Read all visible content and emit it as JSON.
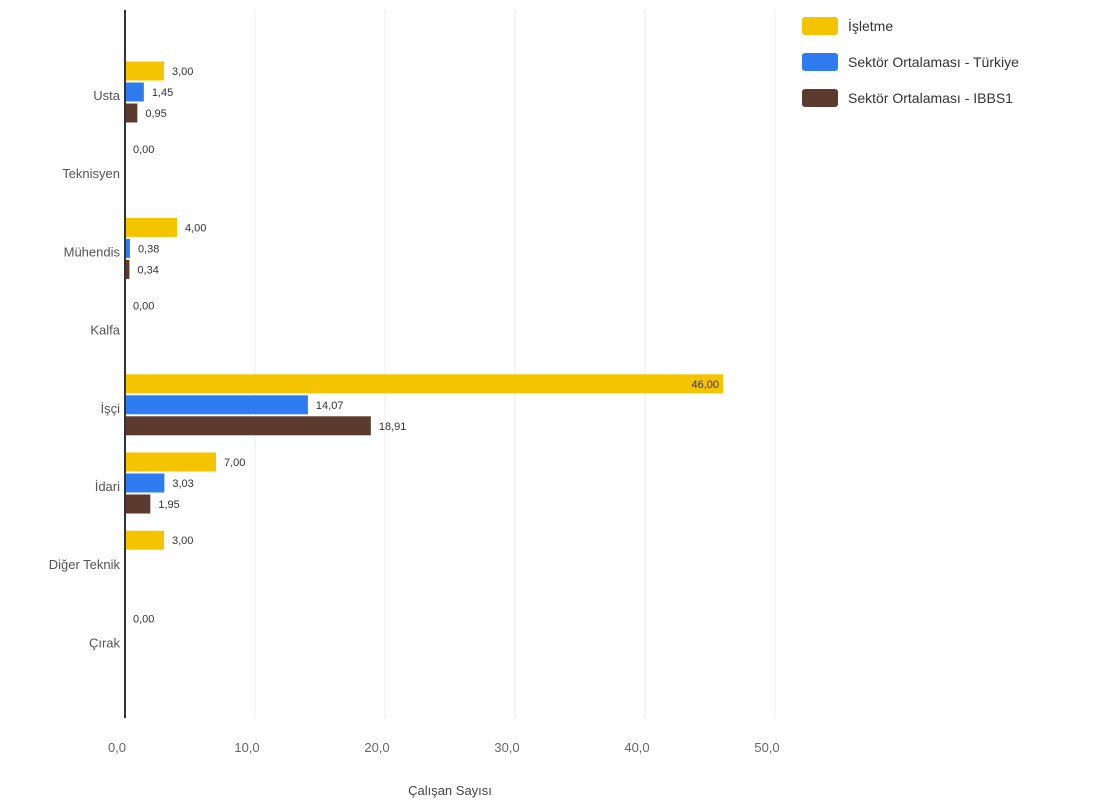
{
  "chart_data": {
    "type": "bar",
    "orientation": "horizontal",
    "categories": [
      "Usta",
      "Teknisyen",
      "Mühendis",
      "Kalfa",
      "İşçi",
      "İdari",
      "Diğer Teknik",
      "Çırak"
    ],
    "series": [
      {
        "name": "İşletme",
        "color": "#F5C400",
        "values": [
          3.0,
          0.0,
          4.0,
          0.0,
          46.0,
          7.0,
          3.0,
          0.0
        ],
        "labels": [
          "3,00",
          "0,00",
          "4,00",
          "0,00",
          "46,00",
          "7,00",
          "3,00",
          "0,00"
        ]
      },
      {
        "name": "Sektör Ortalaması - Türkiye",
        "color": "#2F7CF0",
        "values": [
          1.45,
          null,
          0.38,
          null,
          14.07,
          3.03,
          null,
          null
        ],
        "labels": [
          "1,45",
          null,
          "0,38",
          null,
          "14,07",
          "3,03",
          null,
          null
        ]
      },
      {
        "name": "Sektör Ortalaması - IBBS1",
        "color": "#5C3A2E",
        "values": [
          0.95,
          null,
          0.34,
          null,
          18.91,
          1.95,
          null,
          null
        ],
        "labels": [
          "0,95",
          null,
          "0,34",
          null,
          "18,91",
          "1,95",
          null,
          null
        ]
      }
    ],
    "xticks": [
      "0,0",
      "10,0",
      "20,0",
      "30,0",
      "40,0",
      "50,0"
    ],
    "xlim": [
      0,
      50
    ],
    "xlabel": "Çalışan Sayısı",
    "ylabel": "",
    "grid": true,
    "legend_position": "top-right"
  }
}
